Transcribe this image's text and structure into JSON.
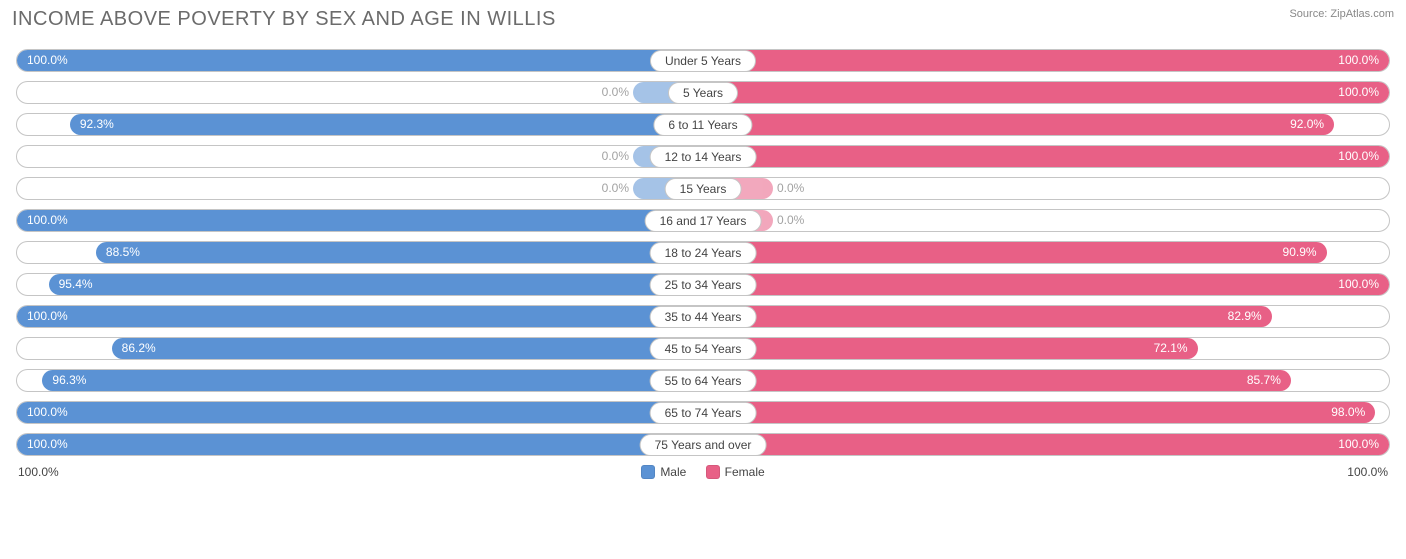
{
  "title": "INCOME ABOVE POVERTY BY SEX AND AGE IN WILLIS",
  "source": "Source: ZipAtlas.com",
  "colors": {
    "male": "#5b92d4",
    "female": "#e86086",
    "border": "#c5c5c5",
    "text": "#6b6b6b",
    "background": "#ffffff"
  },
  "axis": {
    "left": "100.0%",
    "right": "100.0%"
  },
  "legend": {
    "male": "Male",
    "female": "Female"
  },
  "rows": [
    {
      "age": "Under 5 Years",
      "male": 100.0,
      "male_label": "100.0%",
      "female": 100.0,
      "female_label": "100.0%"
    },
    {
      "age": "5 Years",
      "male": 0.0,
      "male_label": "0.0%",
      "female": 100.0,
      "female_label": "100.0%"
    },
    {
      "age": "6 to 11 Years",
      "male": 92.3,
      "male_label": "92.3%",
      "female": 92.0,
      "female_label": "92.0%"
    },
    {
      "age": "12 to 14 Years",
      "male": 0.0,
      "male_label": "0.0%",
      "female": 100.0,
      "female_label": "100.0%"
    },
    {
      "age": "15 Years",
      "male": 0.0,
      "male_label": "0.0%",
      "female": 0.0,
      "female_label": "0.0%"
    },
    {
      "age": "16 and 17 Years",
      "male": 100.0,
      "male_label": "100.0%",
      "female": 0.0,
      "female_label": "0.0%"
    },
    {
      "age": "18 to 24 Years",
      "male": 88.5,
      "male_label": "88.5%",
      "female": 90.9,
      "female_label": "90.9%"
    },
    {
      "age": "25 to 34 Years",
      "male": 95.4,
      "male_label": "95.4%",
      "female": 100.0,
      "female_label": "100.0%"
    },
    {
      "age": "35 to 44 Years",
      "male": 100.0,
      "male_label": "100.0%",
      "female": 82.9,
      "female_label": "82.9%"
    },
    {
      "age": "45 to 54 Years",
      "male": 86.2,
      "male_label": "86.2%",
      "female": 72.1,
      "female_label": "72.1%"
    },
    {
      "age": "55 to 64 Years",
      "male": 96.3,
      "male_label": "96.3%",
      "female": 85.7,
      "female_label": "85.7%"
    },
    {
      "age": "65 to 74 Years",
      "male": 100.0,
      "male_label": "100.0%",
      "female": 98.0,
      "female_label": "98.0%"
    },
    {
      "age": "75 Years and over",
      "male": 100.0,
      "male_label": "100.0%",
      "female": 100.0,
      "female_label": "100.0%"
    }
  ]
}
